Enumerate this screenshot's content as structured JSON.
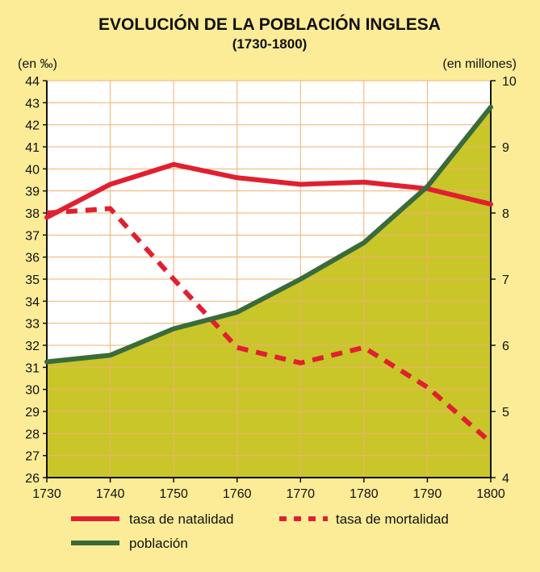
{
  "chart_data": {
    "type": "line",
    "title": "EVOLUCIÓN DE LA POBLACIÓN INGLESA",
    "subtitle": "(1730-1800)",
    "ylabel_left": "(en ‰)",
    "ylabel_right": "(en millones)",
    "x": [
      1730,
      1740,
      1750,
      1760,
      1770,
      1780,
      1790,
      1800
    ],
    "x_tick_labels": [
      "1730",
      "1740",
      "1750",
      "1760",
      "1770",
      "1780",
      "1790",
      "1800"
    ],
    "ylim_left": [
      26,
      44
    ],
    "y_ticks_left": [
      "26",
      "27",
      "28",
      "29",
      "30",
      "31",
      "32",
      "33",
      "34",
      "35",
      "36",
      "37",
      "38",
      "39",
      "40",
      "41",
      "42",
      "43",
      "44"
    ],
    "ylim_right": [
      4,
      10
    ],
    "y_ticks_right": [
      "4",
      "5",
      "6",
      "7",
      "8",
      "9",
      "10"
    ],
    "grid": true,
    "legend_position": "bottom",
    "series": [
      {
        "name": "tasa de natalidad",
        "axis": "left",
        "style": "solid",
        "color": "#e02030",
        "values": [
          37.8,
          39.3,
          40.2,
          39.6,
          39.3,
          39.4,
          39.1,
          38.4
        ]
      },
      {
        "name": "tasa de mortalidad",
        "axis": "left",
        "style": "dashed",
        "color": "#e02030",
        "values": [
          38.0,
          38.2,
          35.0,
          31.9,
          31.2,
          31.9,
          30.1,
          27.6
        ]
      },
      {
        "name": "población",
        "axis": "right",
        "style": "solid",
        "color": "#3a6b3a",
        "values": [
          5.75,
          5.85,
          6.25,
          6.5,
          7.0,
          7.55,
          8.4,
          9.6
        ]
      }
    ]
  },
  "colors": {
    "background": "#fcec98",
    "plot_background": "#ffffff",
    "population_fill": "#c9c62a",
    "grid": "#f0b070",
    "natalidad": "#e02030",
    "mortalidad": "#e02030",
    "poblacion": "#3a6b3a"
  }
}
